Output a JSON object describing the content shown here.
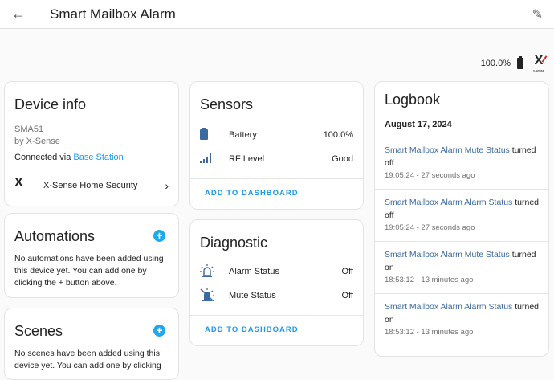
{
  "header": {
    "title": "Smart Mailbox Alarm",
    "back_icon": "arrow-left",
    "edit_icon": "pencil"
  },
  "status": {
    "battery": "100.0%",
    "logo": "X-SENSE"
  },
  "device_info": {
    "title": "Device info",
    "model": "SMA51",
    "manufacturer": "by X-Sense",
    "connected_prefix": "Connected via ",
    "connected_link": "Base Station",
    "integration": "X-Sense Home Security"
  },
  "automations": {
    "title": "Automations",
    "text": "No automations have been added using this device yet. You can add one by clicking the + button above."
  },
  "scenes": {
    "title": "Scenes",
    "text": "No scenes have been added using this device yet. You can add one by clicking"
  },
  "sensors": {
    "title": "Sensors",
    "items": [
      {
        "label": "Battery",
        "value": "100.0%",
        "icon": "battery"
      },
      {
        "label": "RF Level",
        "value": "Good",
        "icon": "signal"
      }
    ],
    "action": "ADD TO DASHBOARD"
  },
  "diagnostic": {
    "title": "Diagnostic",
    "items": [
      {
        "label": "Alarm Status",
        "value": "Off",
        "icon": "alarm-light"
      },
      {
        "label": "Mute Status",
        "value": "Off",
        "icon": "alarm-light-off"
      }
    ],
    "action": "ADD TO DASHBOARD"
  },
  "logbook": {
    "title": "Logbook",
    "date": "August 17, 2024",
    "entries": [
      {
        "entity": "Smart Mailbox Alarm Mute Status",
        "action": " turned off",
        "time": "19:05:24 - 27 seconds ago"
      },
      {
        "entity": "Smart Mailbox Alarm Alarm Status",
        "action": " turned off",
        "time": "19:05:24 - 27 seconds ago"
      },
      {
        "entity": "Smart Mailbox Alarm Mute Status",
        "action": " turned on",
        "time": "18:53:12 - 13 minutes ago"
      },
      {
        "entity": "Smart Mailbox Alarm Alarm Status",
        "action": " turned on",
        "time": "18:53:12 - 13 minutes ago"
      }
    ]
  },
  "colors": {
    "accent": "#1e9be9",
    "link": "#3b6aa0"
  }
}
